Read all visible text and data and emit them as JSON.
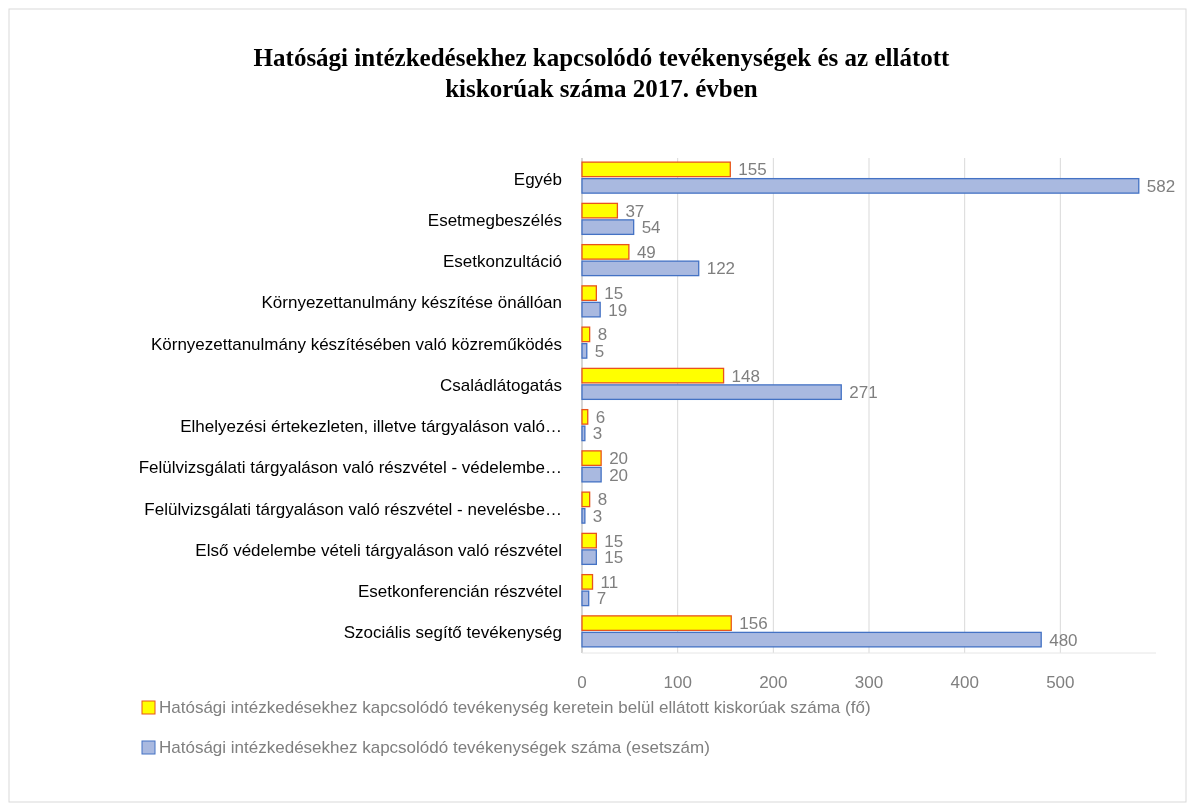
{
  "chart_data": {
    "type": "bar",
    "orientation": "horizontal",
    "title": "Hatósági intézkedésekhez kapcsolódó tevékenységek és az ellátott kiskorúak száma 2017. évben",
    "categories": [
      "Egyéb",
      "Esetmegbeszélés",
      "Esetkonzultáció",
      "Környezettanulmány készítése önállóan",
      "Környezettanulmány készítésében való közreműködés",
      "Családlátogatás",
      "Elhelyezési értekezleten, illetve tárgyaláson való…",
      "Felülvizsgálati tárgyaláson való részvétel - védelembe…",
      "Felülvizsgálati tárgyaláson való részvétel - nevelésbe…",
      "Első védelembe vételi tárgyaláson való részvétel",
      "Esetkonferencián részvétel",
      "Szociális segítő tevékenység"
    ],
    "series": [
      {
        "name": "Hatósági intézkedésekhez kapcsolódó tevékenység keretein belül ellátott kiskorúak száma (fő)",
        "color": "#ffff00",
        "values": [
          155,
          37,
          49,
          15,
          8,
          148,
          6,
          20,
          8,
          15,
          11,
          156
        ]
      },
      {
        "name": "Hatósági intézkedésekhez kapcsolódó tevékenységek száma (esetszám)",
        "color": "#a9b9e0",
        "values": [
          582,
          54,
          122,
          19,
          5,
          271,
          3,
          20,
          3,
          15,
          7,
          480
        ]
      }
    ],
    "xlim": [
      0,
      600
    ],
    "xticks": [
      0,
      100,
      200,
      300,
      400,
      500
    ],
    "grid": "x",
    "legend": "bottom",
    "data_labels": true
  }
}
